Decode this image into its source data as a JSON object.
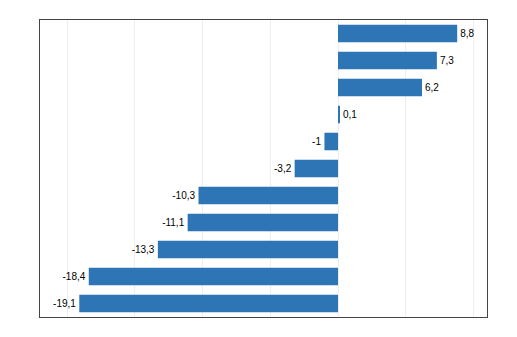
{
  "chart_data": {
    "type": "bar",
    "orientation": "horizontal",
    "categories": [
      null,
      null,
      null,
      null,
      null,
      null,
      null,
      null,
      null,
      null,
      null
    ],
    "values": [
      8.8,
      7.3,
      6.2,
      0.1,
      -1.0,
      -3.2,
      -10.3,
      -11.1,
      -13.3,
      -18.4,
      -19.1
    ],
    "value_labels": [
      "8,8",
      "7,3",
      "6,2",
      "0,1",
      "-1",
      "-3,2",
      "-10,3",
      "-11,1",
      "-13,3",
      "-18,4",
      "-19,1"
    ],
    "data_labels": true,
    "color": "#2E75B6",
    "xlim": [
      -22,
      11
    ],
    "xticks": [
      -20,
      -15,
      -10,
      -5,
      0,
      5,
      10
    ],
    "grid": true,
    "tick_labels": false
  }
}
